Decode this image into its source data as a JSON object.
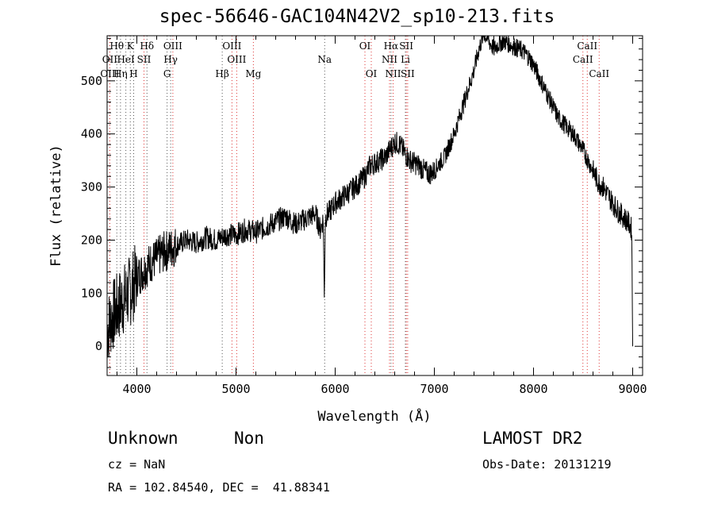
{
  "title": "spec-56646-GAC104N42V2_sp10-213.fits",
  "xlabel": "Wavelength (Å)",
  "ylabel": "Flux (relative)",
  "info": {
    "class": "Unknown",
    "subclass": "Non",
    "survey": "LAMOST DR2",
    "cz": "cz = NaN",
    "obs_date": "Obs-Date: 20131219",
    "radec": "RA = 102.84540, DEC =  41.88341"
  },
  "chart_data": {
    "type": "line",
    "title": "spec-56646-GAC104N42V2_sp10-213.fits",
    "xlabel": "Wavelength (Å)",
    "ylabel": "Flux (relative)",
    "xlim": [
      3700,
      9100
    ],
    "ylim": [
      -55,
      585
    ],
    "xticks": [
      4000,
      5000,
      6000,
      7000,
      8000,
      9000
    ],
    "yticks": [
      0,
      100,
      200,
      300,
      400,
      500
    ],
    "grid": false,
    "series": [
      {
        "x": [
          3700,
          3750,
          3800,
          3850,
          3900,
          3950,
          4000,
          4050,
          4100,
          4150,
          4200,
          4250,
          4300,
          4350,
          4400,
          4450,
          4500,
          4600,
          4700,
          4800,
          4900,
          5000,
          5100,
          5200,
          5300,
          5400,
          5500,
          5600,
          5700,
          5800,
          5850,
          5880,
          5890,
          5900,
          5920,
          5950,
          6000,
          6100,
          6200,
          6300,
          6350,
          6400,
          6450,
          6500,
          6550,
          6600,
          6650,
          6700,
          6750,
          6800,
          6850,
          6900,
          6950,
          7000,
          7050,
          7100,
          7200,
          7300,
          7400,
          7450,
          7500,
          7550,
          7600,
          7650,
          7700,
          7750,
          7800,
          7850,
          7900,
          7950,
          8000,
          8050,
          8100,
          8150,
          8200,
          8250,
          8300,
          8350,
          8400,
          8450,
          8500,
          8550,
          8600,
          8650,
          8700,
          8750,
          8800,
          8850,
          8900,
          8950,
          8990,
          9000
        ],
        "y": [
          30,
          55,
          70,
          85,
          95,
          110,
          130,
          140,
          150,
          160,
          165,
          175,
          180,
          185,
          190,
          195,
          200,
          195,
          205,
          200,
          210,
          210,
          220,
          215,
          225,
          235,
          245,
          230,
          240,
          250,
          220,
          240,
          90,
          240,
          250,
          255,
          270,
          285,
          300,
          320,
          340,
          345,
          350,
          355,
          370,
          385,
          380,
          365,
          350,
          345,
          340,
          330,
          325,
          330,
          345,
          355,
          400,
          460,
          520,
          560,
          590,
          575,
          560,
          570,
          575,
          570,
          565,
          560,
          555,
          545,
          530,
          510,
          490,
          470,
          450,
          430,
          420,
          410,
          400,
          385,
          370,
          350,
          330,
          310,
          300,
          285,
          270,
          255,
          245,
          235,
          220,
          0
        ]
      }
    ],
    "lines": [
      {
        "name": "Hθ",
        "x": 3798,
        "row": 1,
        "color": "black"
      },
      {
        "name": "OII",
        "x": 3727,
        "row": 2,
        "color": "black"
      },
      {
        "name": "OIII",
        "x": 3727,
        "row": 3,
        "color": "red"
      },
      {
        "name": "Hη",
        "x": 3835,
        "row": 3,
        "color": "black"
      },
      {
        "name": "K",
        "x": 3934,
        "row": 1,
        "color": "black"
      },
      {
        "name": "HeI",
        "x": 3889,
        "row": 2,
        "color": "black"
      },
      {
        "name": "H",
        "x": 3968,
        "row": 3,
        "color": "black"
      },
      {
        "name": "Hδ",
        "x": 4102,
        "row": 1,
        "color": "black"
      },
      {
        "name": "SII",
        "x": 4072,
        "row": 2,
        "color": "red"
      },
      {
        "name": "OIII",
        "x": 4363,
        "row": 1,
        "color": "red"
      },
      {
        "name": "Hγ",
        "x": 4341,
        "row": 2,
        "color": "black"
      },
      {
        "name": "G",
        "x": 4305,
        "row": 3,
        "color": "black"
      },
      {
        "name": "OIII",
        "x": 4959,
        "row": 1,
        "color": "red"
      },
      {
        "name": "OIII",
        "x": 5007,
        "row": 2,
        "color": "red"
      },
      {
        "name": "Hβ",
        "x": 4861,
        "row": 3,
        "color": "black"
      },
      {
        "name": "Mg",
        "x": 5175,
        "row": 3,
        "color": "red"
      },
      {
        "name": "Na",
        "x": 5894,
        "row": 2,
        "color": "black"
      },
      {
        "name": "OI",
        "x": 6300,
        "row": 1,
        "color": "red"
      },
      {
        "name": "OI",
        "x": 6364,
        "row": 3,
        "color": "red"
      },
      {
        "name": "Hα",
        "x": 6563,
        "row": 1,
        "color": "black"
      },
      {
        "name": "SII",
        "x": 6717,
        "row": 1,
        "color": "red"
      },
      {
        "name": "NII",
        "x": 6548,
        "row": 2,
        "color": "red"
      },
      {
        "name": "Li",
        "x": 6708,
        "row": 2,
        "color": "black"
      },
      {
        "name": "NII",
        "x": 6584,
        "row": 3,
        "color": "red"
      },
      {
        "name": "SII",
        "x": 6731,
        "row": 3,
        "color": "red"
      },
      {
        "name": "CaII",
        "x": 8542,
        "row": 1,
        "color": "red"
      },
      {
        "name": "CaII",
        "x": 8498,
        "row": 2,
        "color": "red"
      },
      {
        "name": "CaII",
        "x": 8662,
        "row": 3,
        "color": "red"
      }
    ]
  }
}
